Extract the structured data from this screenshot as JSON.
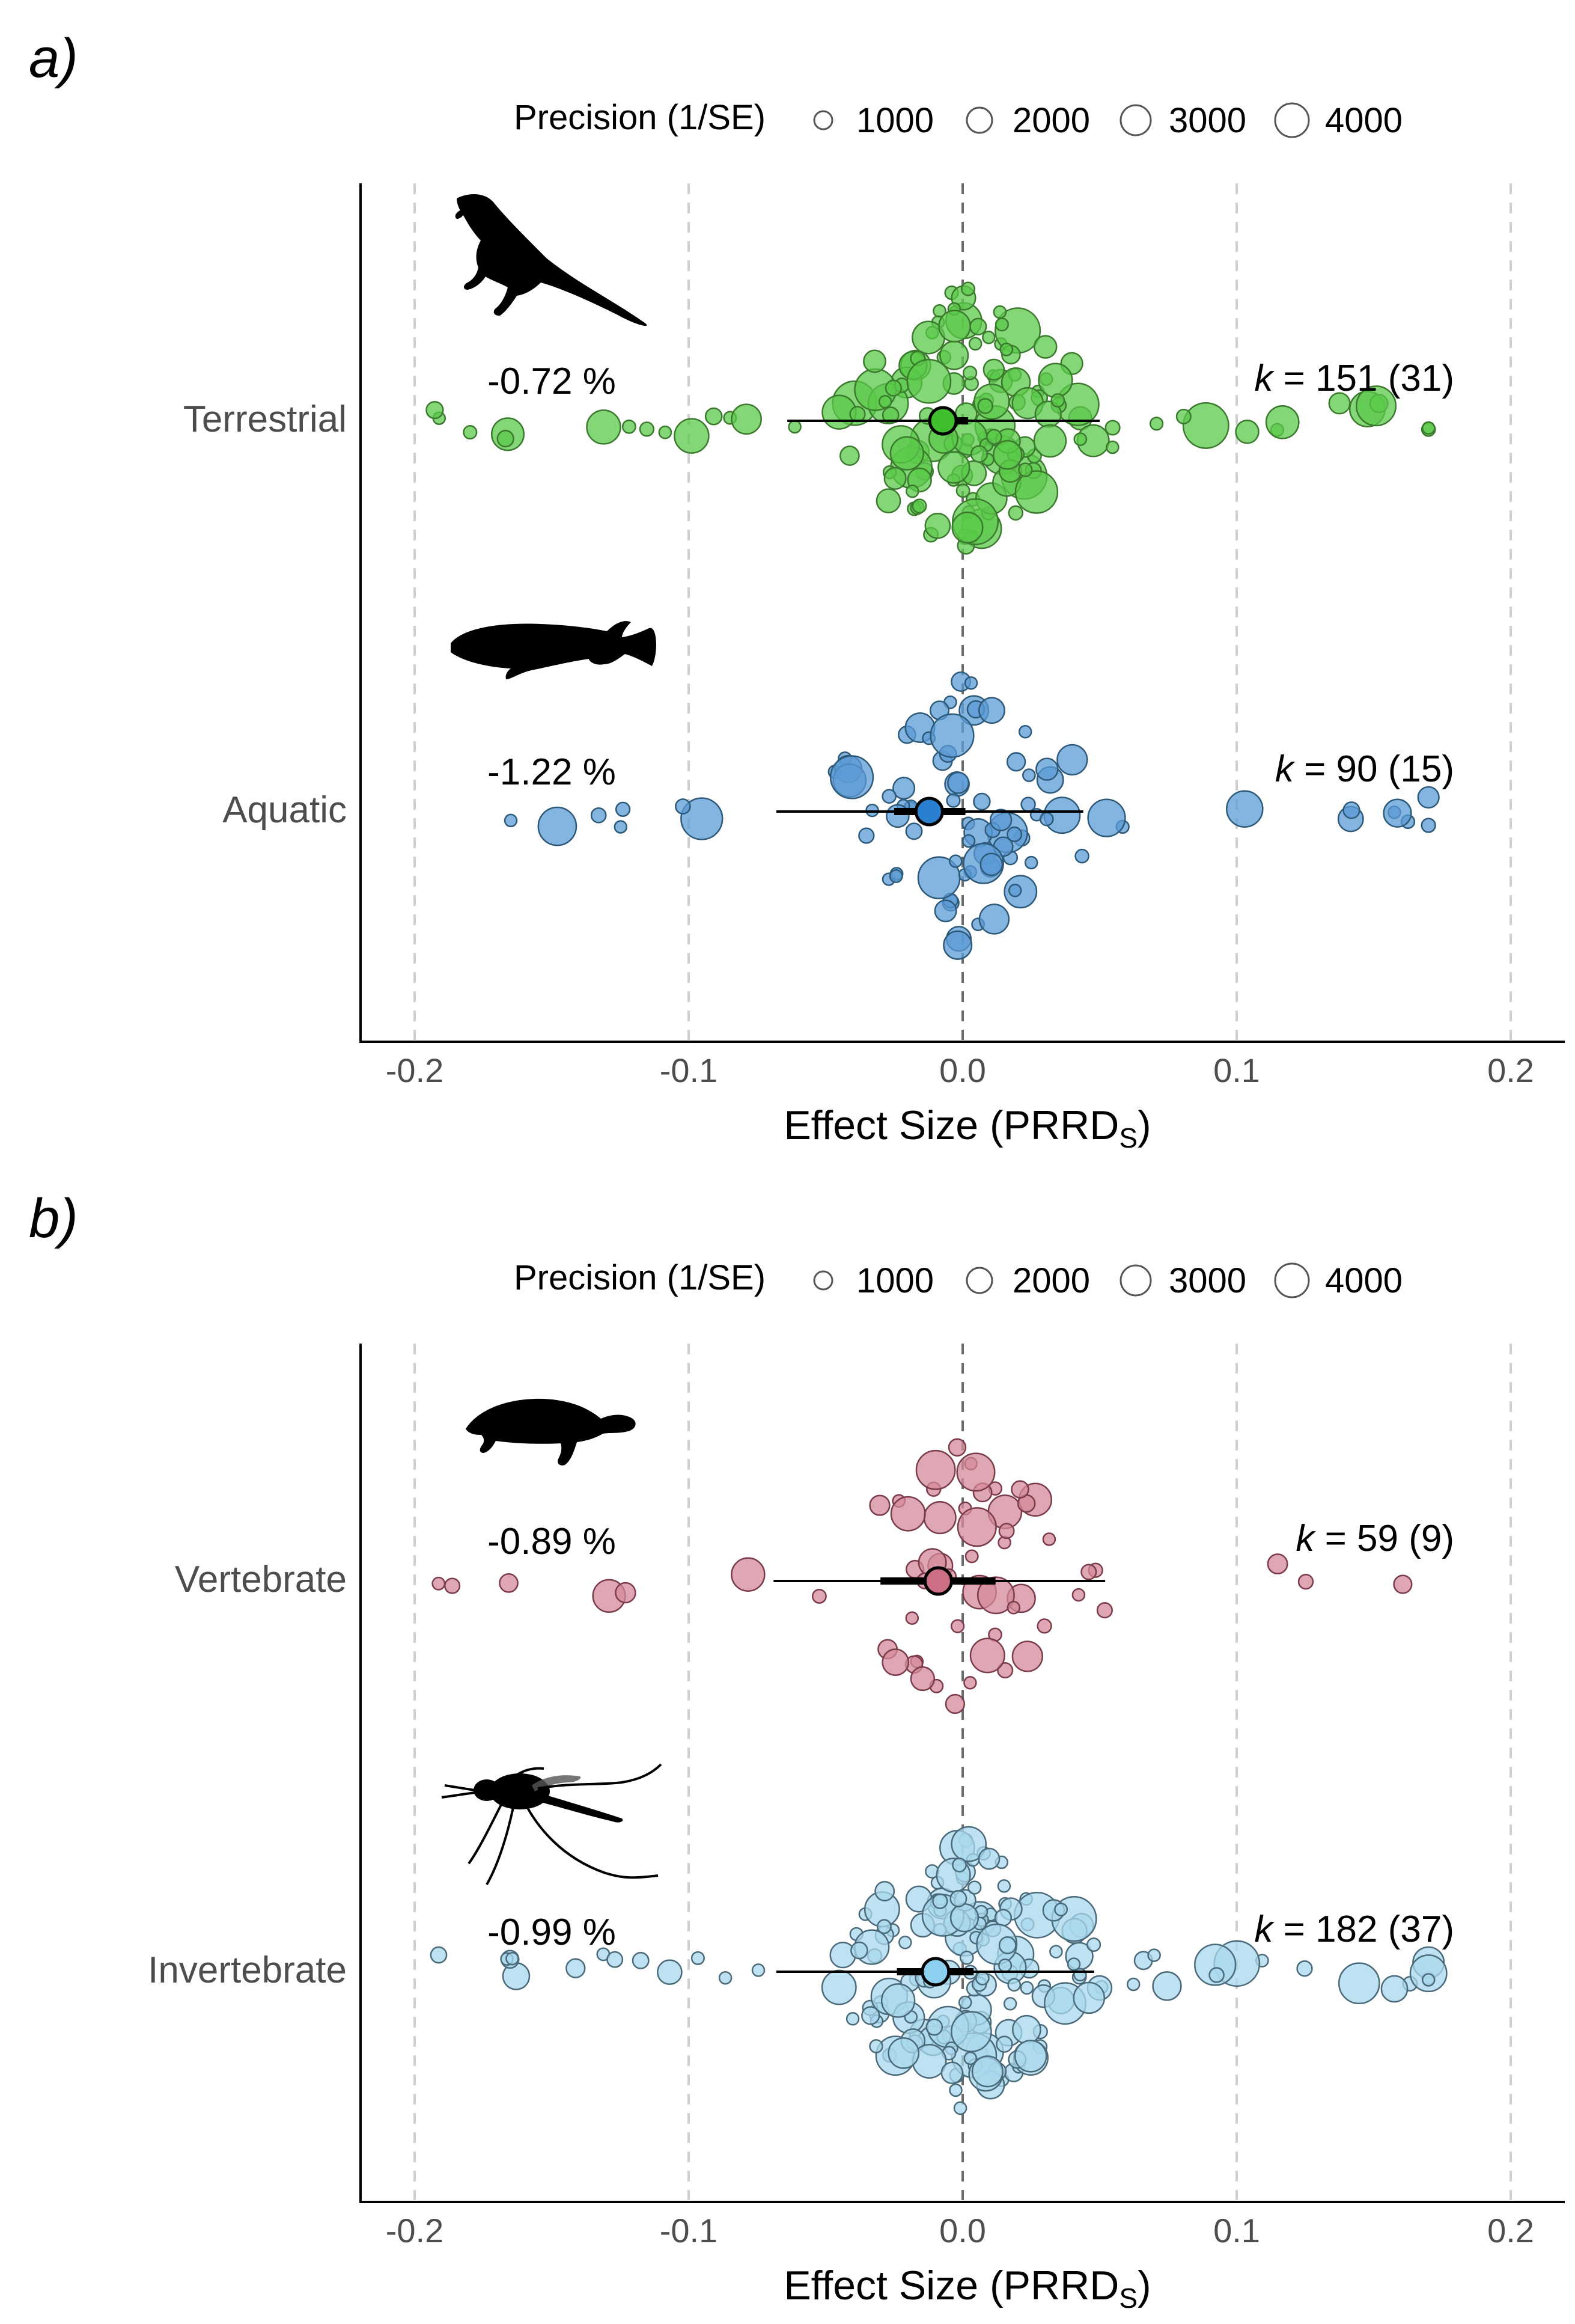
{
  "panels": [
    {
      "label": "a)",
      "legend": {
        "title": "Precision (1/SE)",
        "items": [
          "1000",
          "2000",
          "3000",
          "4000"
        ]
      },
      "xlabel": "Effect Size (PRRD",
      "xlabel_sub": "S",
      "xlabel_end": ")",
      "ticks": [
        "-0.2",
        "-0.1",
        "0.0",
        "0.1",
        "0.2"
      ],
      "categories": [
        {
          "name": "Terrestrial",
          "percent": "-0.72 %",
          "k_prefix": "k",
          "k_text": " = 151 (31)",
          "icon": "lizard-silhouette-icon",
          "color": "#5bc94a",
          "estimate": -0.0072,
          "ci_inner": [
            -0.012,
            0.002
          ],
          "ci_outer": [
            -0.064,
            0.05
          ],
          "n_points": 151
        },
        {
          "name": "Aquatic",
          "percent": "-1.22 %",
          "k_prefix": "k",
          "k_text": " = 90 (15)",
          "icon": "fish-silhouette-icon",
          "color": "#5b9bd5",
          "estimate": -0.0122,
          "ci_inner": [
            -0.025,
            0.001
          ],
          "ci_outer": [
            -0.068,
            0.044
          ],
          "n_points": 90
        }
      ]
    },
    {
      "label": "b)",
      "legend": {
        "title": "Precision (1/SE)",
        "items": [
          "1000",
          "2000",
          "3000",
          "4000"
        ]
      },
      "xlabel": "Effect Size (PRRD",
      "xlabel_sub": "S",
      "xlabel_end": ")",
      "ticks": [
        "-0.2",
        "-0.1",
        "0.0",
        "0.1",
        "0.2"
      ],
      "categories": [
        {
          "name": "Vertebrate",
          "percent": "-0.89 %",
          "k_prefix": "k",
          "k_text": " = 59 (9)",
          "icon": "turtle-silhouette-icon",
          "color": "#d48a9a",
          "estimate": -0.0089,
          "ci_inner": [
            -0.03,
            0.012
          ],
          "ci_outer": [
            -0.069,
            0.052
          ],
          "n_points": 59
        },
        {
          "name": "Invertebrate",
          "percent": "-0.99 %",
          "k_prefix": "k",
          "k_text": " = 182 (37)",
          "icon": "mosquito-silhouette-icon",
          "color": "#a9d8ee",
          "estimate": -0.0099,
          "ci_inner": [
            -0.024,
            0.004
          ],
          "ci_outer": [
            -0.068,
            0.048
          ],
          "n_points": 182
        }
      ]
    }
  ],
  "chart_data": [
    {
      "type": "scatter",
      "title": "",
      "xlabel": "Effect Size (PRRDS)",
      "xlim": [
        -0.22,
        0.22
      ],
      "grid": "vertical dashed at ticks",
      "legend": {
        "title": "Precision (1/SE)",
        "values": [
          1000,
          2000,
          3000,
          4000
        ],
        "placement": "top"
      },
      "categories": [
        "Terrestrial",
        "Aquatic"
      ],
      "series": [
        {
          "name": "Terrestrial",
          "estimate": -0.0072,
          "ci_inner": [
            -0.012,
            0.002
          ],
          "ci_outer": [
            -0.064,
            0.05
          ],
          "k": 151,
          "studies": 31
        },
        {
          "name": "Aquatic",
          "estimate": -0.0122,
          "ci_inner": [
            -0.025,
            0.001
          ],
          "ci_outer": [
            -0.068,
            0.044
          ],
          "k": 90,
          "studies": 15
        }
      ]
    },
    {
      "type": "scatter",
      "title": "",
      "xlabel": "Effect Size (PRRDS)",
      "xlim": [
        -0.22,
        0.22
      ],
      "grid": "vertical dashed at ticks",
      "legend": {
        "title": "Precision (1/SE)",
        "values": [
          1000,
          2000,
          3000,
          4000
        ],
        "placement": "top"
      },
      "categories": [
        "Vertebrate",
        "Invertebrate"
      ],
      "series": [
        {
          "name": "Vertebrate",
          "estimate": -0.0089,
          "ci_inner": [
            -0.03,
            0.012
          ],
          "ci_outer": [
            -0.069,
            0.052
          ],
          "k": 59,
          "studies": 9
        },
        {
          "name": "Invertebrate",
          "estimate": -0.0099,
          "ci_inner": [
            -0.024,
            0.004
          ],
          "ci_outer": [
            -0.068,
            0.048
          ],
          "k": 182,
          "studies": 37
        }
      ]
    }
  ]
}
